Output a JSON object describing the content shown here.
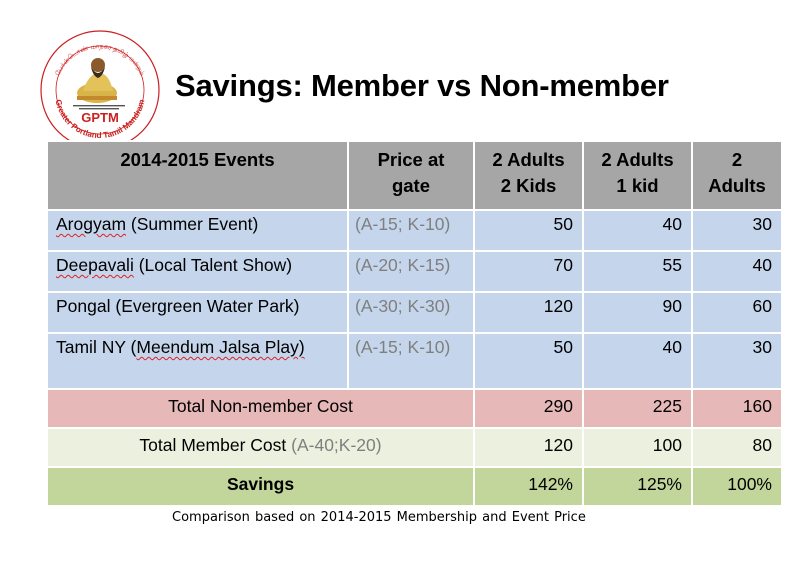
{
  "page": {
    "title": "Savings: Member vs Non-member",
    "footer": "Comparison  based on 2014-2015  Membership  and Event Price"
  },
  "logo": {
    "name": "gptm-logo",
    "acronym": "GPTM",
    "arc_text": "Greater Portland Tamil Mandram",
    "colors": {
      "ring": "#cc1f1f",
      "figure": "#c9a23a",
      "text": "#cc1f1f"
    }
  },
  "table": {
    "headers": [
      {
        "line1": "2014-2015 Events",
        "line2": ""
      },
      {
        "line1": "Price at",
        "line2": "gate"
      },
      {
        "line1": "2 Adults",
        "line2": "2 Kids"
      },
      {
        "line1": "2 Adults",
        "line2": "1 kid"
      },
      {
        "line1": "2",
        "line2": "Adults"
      }
    ],
    "events": [
      {
        "name": "Arogyam",
        "desc": " (Summer Event)",
        "price": "(A-15; K-10)",
        "v1": "50",
        "v2": "40",
        "v3": "30"
      },
      {
        "name": "Deepavali",
        "desc": " (Local Talent Show)",
        "price": "(A-20; K-15)",
        "v1": "70",
        "v2": "55",
        "v3": "40"
      },
      {
        "name": "Pongal",
        "desc": " (Evergreen Water Park)",
        "price": "(A-30; K-30)",
        "v1": "120",
        "v2": "90",
        "v3": "60"
      },
      {
        "name": "Tamil NY (",
        "desc": "Meendum Jalsa Play)",
        "price": "(A-15; K-10)",
        "v1": "50",
        "v2": "40",
        "v3": "30"
      }
    ],
    "nonmember": {
      "label": "Total Non-member Cost",
      "v1": "290",
      "v2": "225",
      "v3": "160"
    },
    "member": {
      "label": "Total Member Cost",
      "note": "(A-40;K-20)",
      "v1": "120",
      "v2": "100",
      "v3": "80"
    },
    "savings": {
      "label": "Savings",
      "v1": "142%",
      "v2": "125%",
      "v3": "100%"
    }
  },
  "colors": {
    "header_bg": "#a6a6a6",
    "event_rows_bg": "#c5d6ec",
    "nonmember_bg": "#e6b9b8",
    "member_bg": "#ebf1de",
    "savings_bg": "#c2d69b"
  }
}
